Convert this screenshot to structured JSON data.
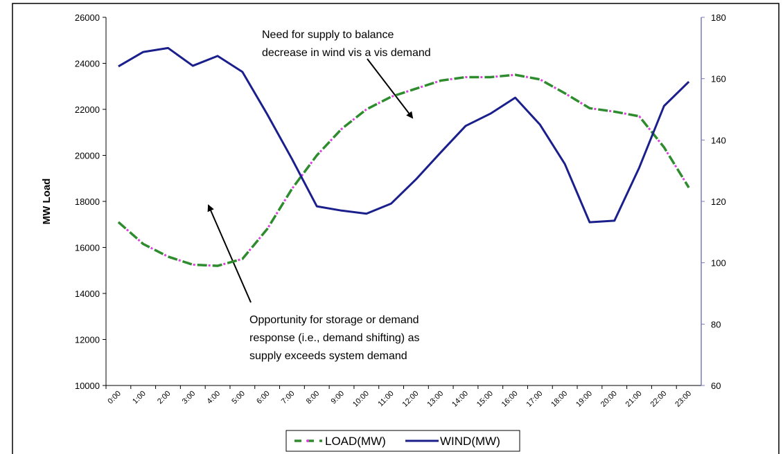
{
  "chart_data": {
    "type": "line",
    "y_label": "MW Load",
    "annotations": [
      {
        "lines": [
          "Need for supply to balance",
          "decrease in wind vis a vis demand"
        ]
      },
      {
        "lines": [
          "Opportunity for storage or demand",
          "response (i.e., demand shifting) as",
          "supply exceeds system demand"
        ]
      }
    ],
    "categories": [
      "0:00",
      "1:00",
      "2:00",
      "3:00",
      "4:00",
      "5:00",
      "6:00",
      "7:00",
      "8:00",
      "9:00",
      "10:00",
      "11:00",
      "12:00",
      "13:00",
      "14:00",
      "15:00",
      "16:00",
      "17:00",
      "18:00",
      "19:00",
      "20:00",
      "21:00",
      "22:00",
      "23:00"
    ],
    "series": [
      {
        "name": "LOAD(MW)",
        "color": "#2e8b2e",
        "dot_color": "#e040e0",
        "style": "dashed",
        "values": [
          17100,
          16150,
          15600,
          15250,
          15200,
          15500,
          16800,
          18550,
          20000,
          21150,
          22000,
          22550,
          22900,
          23250,
          23400,
          23400,
          23500,
          23300,
          22700,
          22050,
          21900,
          21700,
          20350,
          18600
        ]
      },
      {
        "name": "WIND(MW)",
        "color": "#1a1f8c",
        "style": "solid",
        "axis": "y2",
        "values": [
          164,
          168.7,
          170,
          164.2,
          167.4,
          162.2,
          148.4,
          133.8,
          118.4,
          117,
          116,
          119.3,
          127.2,
          136,
          144.6,
          148.6,
          153.8,
          145,
          132.2,
          113.2,
          113.7,
          131,
          151.1,
          159
        ]
      }
    ],
    "ylim": [
      10000,
      26000
    ],
    "yticks": [
      10000,
      12000,
      14000,
      16000,
      18000,
      20000,
      22000,
      24000,
      26000
    ],
    "y2lim": [
      60,
      180
    ],
    "y2ticks": [
      60,
      80,
      100,
      120,
      140,
      160,
      180
    ],
    "y2_axis_color": "#7a7ab8",
    "legend": "bottom"
  }
}
